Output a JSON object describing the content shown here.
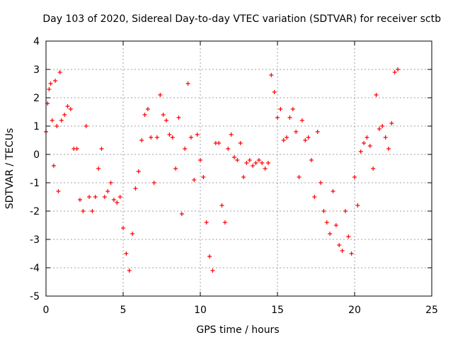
{
  "chart_data": {
    "type": "scatter",
    "title": "Day 103 of 2020, Sidereal Day-to-day VTEC variation (SDTVAR) for receiver sctb",
    "xlabel": "GPS time / hours",
    "ylabel": "SDTVAR / TECUs",
    "xlim": [
      0,
      25
    ],
    "ylim": [
      -5,
      4
    ],
    "xticks": [
      0,
      5,
      10,
      15,
      20,
      25
    ],
    "yticks": [
      -5,
      -4,
      -3,
      -2,
      -1,
      0,
      1,
      2,
      3,
      4
    ],
    "grid": true,
    "marker": "+",
    "color": "#ff0000",
    "series": [
      {
        "name": "SDTVAR",
        "x": [
          0.0,
          0.1,
          0.2,
          0.3,
          0.4,
          0.5,
          0.6,
          0.7,
          0.8,
          0.9,
          1.0,
          1.2,
          1.4,
          1.6,
          1.8,
          2.0,
          2.2,
          2.4,
          2.6,
          2.8,
          3.0,
          3.2,
          3.4,
          3.6,
          3.8,
          4.0,
          4.2,
          4.4,
          4.6,
          4.8,
          5.0,
          5.2,
          5.4,
          5.6,
          5.8,
          6.0,
          6.2,
          6.4,
          6.6,
          6.8,
          7.0,
          7.2,
          7.4,
          7.6,
          7.8,
          8.0,
          8.2,
          8.4,
          8.6,
          8.8,
          9.0,
          9.2,
          9.4,
          9.6,
          9.8,
          10.0,
          10.2,
          10.4,
          10.6,
          10.8,
          11.0,
          11.2,
          11.4,
          11.6,
          11.8,
          12.0,
          12.2,
          12.4,
          12.6,
          12.8,
          13.0,
          13.2,
          13.4,
          13.6,
          13.8,
          14.0,
          14.2,
          14.4,
          14.6,
          14.8,
          15.0,
          15.2,
          15.4,
          15.6,
          15.8,
          16.0,
          16.2,
          16.4,
          16.6,
          16.8,
          17.0,
          17.2,
          17.4,
          17.6,
          17.8,
          18.0,
          18.2,
          18.4,
          18.6,
          18.8,
          19.0,
          19.2,
          19.4,
          19.6,
          19.8,
          20.0,
          20.2,
          20.4,
          20.6,
          20.8,
          21.0,
          21.2,
          21.4,
          21.6,
          21.8,
          22.0,
          22.2,
          22.4,
          22.6,
          22.8
        ],
        "y": [
          0.8,
          1.8,
          2.3,
          2.5,
          1.2,
          -0.4,
          2.6,
          1.0,
          -1.3,
          2.9,
          1.2,
          1.4,
          1.7,
          1.6,
          0.2,
          0.2,
          -1.6,
          -2.0,
          1.0,
          -1.5,
          -2.0,
          -1.5,
          -0.5,
          0.2,
          -1.5,
          -1.3,
          -1.0,
          -1.6,
          -1.7,
          -1.5,
          -2.6,
          -3.5,
          -4.1,
          -2.8,
          -1.2,
          -0.6,
          0.5,
          1.4,
          1.6,
          0.6,
          -1.0,
          0.6,
          2.1,
          1.4,
          1.2,
          0.7,
          0.6,
          -0.5,
          1.3,
          -2.1,
          0.2,
          2.5,
          0.6,
          -0.9,
          0.7,
          -0.2,
          -0.8,
          -2.4,
          -3.6,
          -4.1,
          0.4,
          0.4,
          -1.8,
          -2.4,
          0.2,
          0.7,
          -0.1,
          -0.2,
          0.4,
          -0.8,
          -0.3,
          -0.2,
          -0.4,
          -0.3,
          -0.2,
          -0.3,
          -0.5,
          -0.3,
          2.8,
          2.2,
          1.3,
          1.6,
          0.5,
          0.6,
          1.3,
          1.6,
          0.8,
          -0.8,
          1.2,
          0.5,
          0.6,
          -0.2,
          -1.5,
          0.8,
          -1.0,
          -2.0,
          -2.4,
          -2.8,
          -1.3,
          -2.5,
          -3.2,
          -3.4,
          -2.0,
          -2.9,
          -3.5,
          -0.8,
          -1.8,
          0.1,
          0.4,
          0.6,
          0.3,
          -0.5,
          2.1,
          0.9,
          1.0,
          0.6,
          0.2,
          1.1,
          2.9,
          3.0
        ]
      }
    ]
  }
}
